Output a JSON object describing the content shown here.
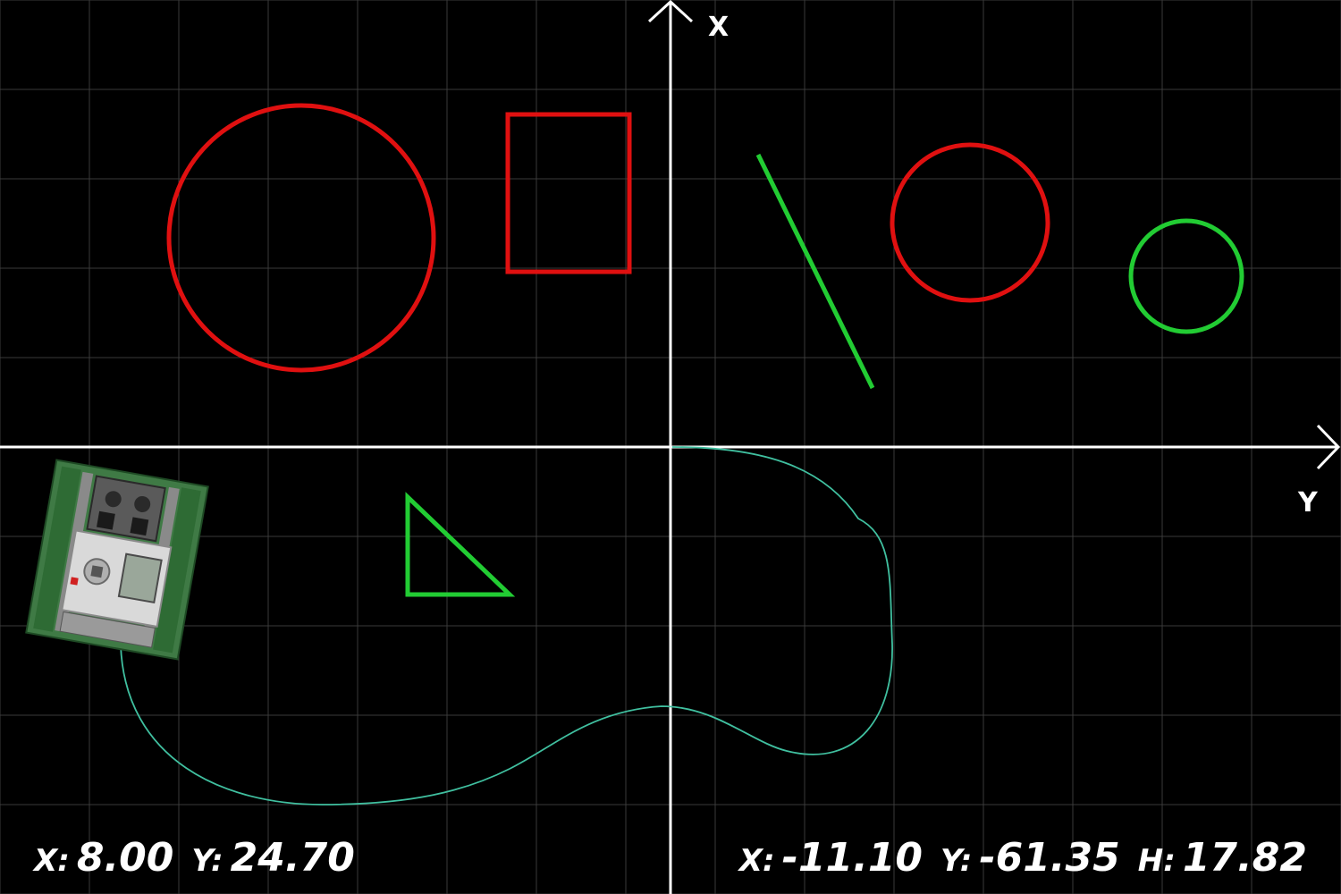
{
  "axes": {
    "x_label": "X",
    "y_label": "Y"
  },
  "readout_left": {
    "x_label": "X:",
    "x_value": "8.00",
    "y_label": "Y:",
    "y_value": "24.70"
  },
  "readout_right": {
    "x_label": "X:",
    "x_value": "-11.10",
    "y_label": "Y:",
    "y_value": "-61.35",
    "h_label": "H:",
    "h_value": "17.82"
  },
  "colors": {
    "background": "#000000",
    "grid": "#3a3a3a",
    "axis": "#ffffff",
    "obstacle_red": "#e01010",
    "obstacle_green": "#22cc33",
    "path": "#40c0a0",
    "robot_body": "#cfcfcf",
    "robot_frame": "#2e6b34"
  }
}
